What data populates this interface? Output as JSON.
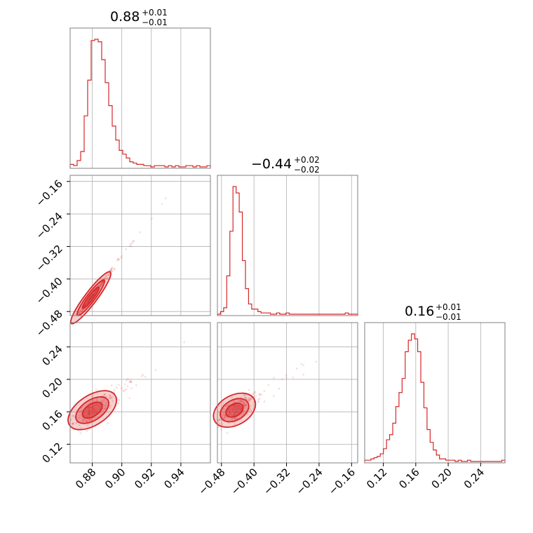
{
  "colors": {
    "accent": "#d62728",
    "fill": "#f4a6a6",
    "grid": "#b0b0b0",
    "frame": "#808080"
  },
  "chart_data": {
    "type": "corner",
    "parameters": [
      {
        "median": "0.88",
        "plus": "+0.01",
        "minus": "−0.01",
        "range": [
          0.865,
          0.96
        ]
      },
      {
        "median": "−0.44",
        "plus": "+0.02",
        "minus": "−0.02",
        "range": [
          -0.49,
          -0.145
        ]
      },
      {
        "median": "0.16",
        "plus": "+0.01",
        "minus": "−0.01",
        "range": [
          0.097,
          0.27
        ]
      }
    ],
    "ticks": [
      {
        "values": [
          0.88,
          0.9,
          0.92,
          0.94
        ],
        "labels": [
          "0.88",
          "0.90",
          "0.92",
          "0.94"
        ]
      },
      {
        "values": [
          -0.48,
          -0.4,
          -0.32,
          -0.24,
          -0.16
        ],
        "labels": [
          "−0.48",
          "−0.40",
          "−0.32",
          "−0.24",
          "−0.16"
        ]
      },
      {
        "values": [
          0.12,
          0.16,
          0.2,
          0.24
        ],
        "labels": [
          "0.12",
          "0.16",
          "0.20",
          "0.24"
        ]
      }
    ],
    "histograms": [
      {
        "param": 0,
        "bins": 40,
        "heights": [
          0.02,
          0.01,
          0.05,
          0.12,
          0.4,
          0.68,
          0.99,
          1.0,
          0.98,
          0.84,
          0.66,
          0.48,
          0.32,
          0.21,
          0.13,
          0.1,
          0.07,
          0.04,
          0.03,
          0.02,
          0.02,
          0.01,
          0.01,
          0,
          0.01,
          0.01,
          0.01,
          0,
          0.01,
          0,
          0.01,
          0,
          0,
          0.01,
          0.01,
          0,
          0.01,
          0,
          0,
          0.01
        ]
      },
      {
        "param": 1,
        "bins": 45,
        "heights": [
          0,
          0.02,
          0.05,
          0.3,
          0.65,
          1.0,
          0.95,
          0.8,
          0.42,
          0.2,
          0.08,
          0.04,
          0.04,
          0.02,
          0.01,
          0.01,
          0.01,
          0,
          0,
          0.01,
          0,
          0,
          0.01,
          0,
          0,
          0,
          0,
          0,
          0,
          0,
          0,
          0,
          0,
          0,
          0,
          0,
          0,
          0,
          0,
          0,
          0,
          0.01,
          0,
          0,
          0
        ]
      },
      {
        "param": 2,
        "bins": 45,
        "heights": [
          0.01,
          0.01,
          0.02,
          0.03,
          0.04,
          0.06,
          0.1,
          0.17,
          0.21,
          0.3,
          0.43,
          0.54,
          0.65,
          0.86,
          0.95,
          1.0,
          0.96,
          0.86,
          0.62,
          0.42,
          0.25,
          0.15,
          0.09,
          0.05,
          0.02,
          0.02,
          0.01,
          0.01,
          0.01,
          0,
          0.01,
          0,
          0,
          0.01,
          0,
          0,
          0,
          0,
          0,
          0,
          0,
          0,
          0,
          0,
          0.01
        ]
      }
    ],
    "pairs": [
      {
        "x": 0,
        "y": 1,
        "center": [
          0.879,
          -0.446
        ],
        "slope": 4.8,
        "spread": [
          0.006,
          0.006
        ]
      },
      {
        "x": 0,
        "y": 2,
        "center": [
          0.88,
          0.162
        ],
        "slope": 1.2,
        "spread": [
          0.007,
          0.012
        ]
      },
      {
        "x": 1,
        "y": 2,
        "center": [
          -0.448,
          0.162
        ],
        "slope": 0.28,
        "spread": [
          0.022,
          0.012
        ]
      }
    ],
    "grid": true
  }
}
